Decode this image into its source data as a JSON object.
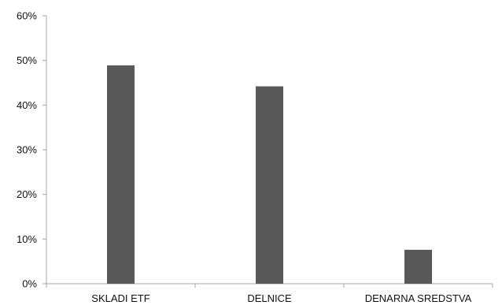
{
  "chart_data": {
    "type": "bar",
    "categories": [
      "SKLADI ETF",
      "DELNICE",
      "DENARNA SREDSTVA"
    ],
    "values": [
      48.9,
      44.2,
      7.6
    ],
    "value_unit": "%",
    "title": "",
    "xlabel": "",
    "ylabel": "",
    "ylim": [
      0,
      60
    ],
    "yticks": [
      0,
      10,
      20,
      30,
      40,
      50,
      60
    ],
    "ytick_labels": [
      "0%",
      "10%",
      "20%",
      "30%",
      "40%",
      "50%",
      "60%"
    ],
    "grid": false,
    "legend": "none",
    "bar_color": "#595959",
    "axis_color": "#a6a6a6"
  }
}
